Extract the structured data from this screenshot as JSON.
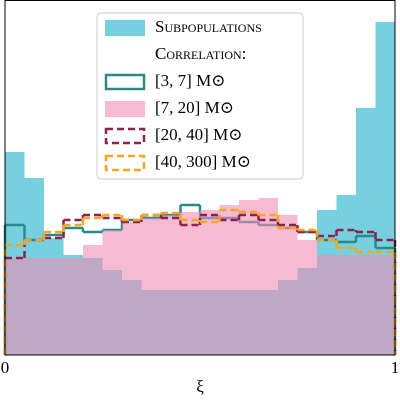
{
  "chart_data": {
    "type": "histogram",
    "xlabel": "ξ",
    "bins": [
      0,
      0.05,
      0.1,
      0.15,
      0.2,
      0.25,
      0.3,
      0.35,
      0.4,
      0.45,
      0.5,
      0.55,
      0.6,
      0.65,
      0.7,
      0.75,
      0.8,
      0.85,
      0.9,
      0.95,
      1
    ],
    "xlim": [
      0,
      1
    ],
    "xticks": [
      0,
      1
    ],
    "ylim": [
      0,
      3.55
    ],
    "legend_title": "Correlation:",
    "legend": "upper center",
    "series": [
      {
        "name": "Subpopulations",
        "color": "#5ec8db",
        "style": "fill",
        "values": [
          2.03,
          1.77,
          1.17,
          1.0,
          0.97,
          0.85,
          0.75,
          0.65,
          0.65,
          0.65,
          0.65,
          0.65,
          0.65,
          0.65,
          0.75,
          0.87,
          1.45,
          1.6,
          2.47,
          3.33
        ]
      },
      {
        "name": "[3, 7] M⊙",
        "color": "#2a8a88",
        "style": "step",
        "values": [
          1.3,
          1.15,
          1.2,
          1.27,
          1.23,
          1.25,
          1.35,
          1.37,
          1.4,
          1.5,
          1.37,
          1.37,
          1.33,
          1.3,
          1.27,
          1.23,
          1.15,
          1.13,
          1.19,
          1.07
        ]
      },
      {
        "name": "[7, 20] M⊙",
        "color": "#f08cb4",
        "style": "fill",
        "values": [
          0.97,
          0.97,
          0.97,
          0.97,
          1.1,
          1.25,
          1.33,
          1.37,
          1.4,
          1.43,
          1.45,
          1.5,
          1.55,
          1.57,
          1.4,
          1.15,
          1.0,
          1.0,
          1.0,
          1.0
        ]
      },
      {
        "name": "[20, 40] M⊙",
        "color": "#8b2252",
        "style": "dashed",
        "values": [
          0.97,
          1.15,
          1.17,
          1.35,
          1.4,
          1.37,
          1.33,
          1.4,
          1.37,
          1.3,
          1.4,
          1.35,
          1.4,
          1.35,
          1.3,
          1.23,
          1.19,
          1.25,
          1.23,
          1.15
        ]
      },
      {
        "name": "[40, 300] M⊙",
        "color": "#f5a623",
        "style": "dashed",
        "values": [
          1.1,
          1.15,
          1.23,
          1.3,
          1.37,
          1.4,
          1.35,
          1.4,
          1.42,
          1.35,
          1.33,
          1.45,
          1.43,
          1.4,
          1.27,
          1.25,
          1.15,
          1.07,
          1.03,
          1.03
        ]
      }
    ]
  }
}
